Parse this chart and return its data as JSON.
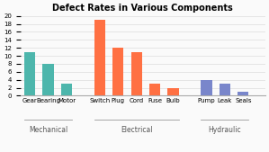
{
  "title": "Defect Rates in Various Components",
  "groups": [
    {
      "name": "Mechanical",
      "color": "#4DB6AC",
      "items": [
        "Gear",
        "Bearing",
        "Motor"
      ],
      "values": [
        11,
        8,
        3
      ]
    },
    {
      "name": "Electrical",
      "color": "#FF7043",
      "items": [
        "Switch",
        "Plug",
        "Cord",
        "Fuse",
        "Bulb"
      ],
      "values": [
        19,
        12,
        11,
        3,
        2
      ]
    },
    {
      "name": "Hydraulic",
      "color": "#7986CB",
      "items": [
        "Pump",
        "Leak",
        "Seals"
      ],
      "values": [
        4,
        3,
        1
      ]
    }
  ],
  "ylim": [
    0,
    20
  ],
  "yticks": [
    0,
    2,
    4,
    6,
    8,
    10,
    12,
    14,
    16,
    18,
    20
  ],
  "bg_color": "#FAFAFA",
  "grid_color": "#DDDDDD",
  "title_fontsize": 7,
  "tick_fontsize": 5,
  "group_label_fontsize": 5.5
}
